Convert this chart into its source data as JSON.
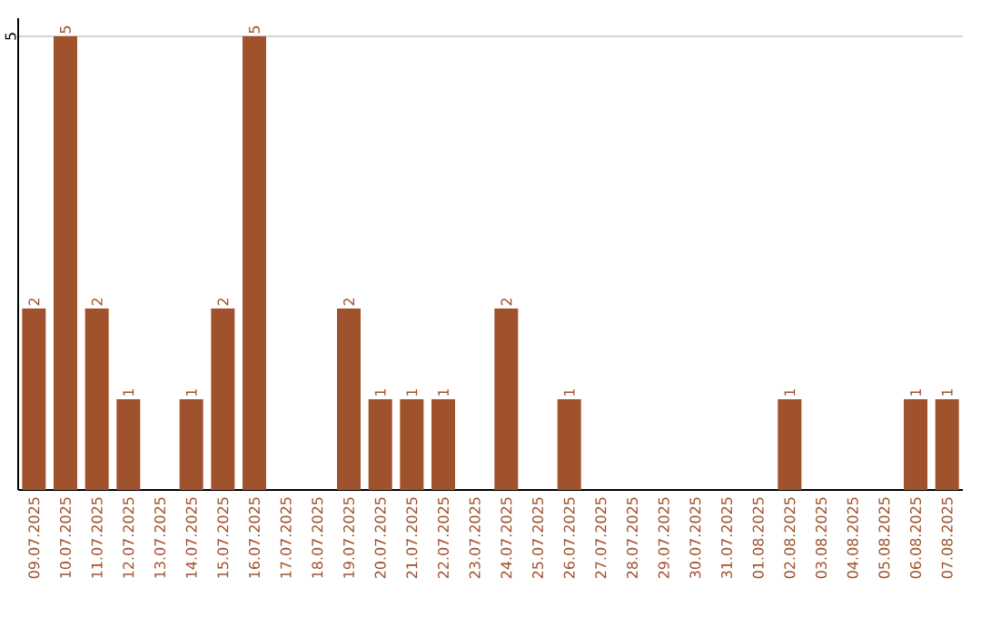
{
  "chart_data": {
    "type": "bar",
    "categories": [
      "09.07.2025",
      "10.07.2025",
      "11.07.2025",
      "12.07.2025",
      "13.07.2025",
      "14.07.2025",
      "15.07.2025",
      "16.07.2025",
      "17.07.2025",
      "18.07.2025",
      "19.07.2025",
      "20.07.2025",
      "21.07.2025",
      "22.07.2025",
      "23.07.2025",
      "24.07.2025",
      "25.07.2025",
      "26.07.2025",
      "27.07.2025",
      "28.07.2025",
      "29.07.2025",
      "30.07.2025",
      "31.07.2025",
      "01.08.2025",
      "02.08.2025",
      "03.08.2025",
      "04.08.2025",
      "05.08.2025",
      "06.08.2025",
      "07.08.2025"
    ],
    "values": [
      2,
      5,
      2,
      1,
      0,
      1,
      2,
      5,
      0,
      0,
      2,
      1,
      1,
      1,
      0,
      2,
      0,
      1,
      0,
      0,
      0,
      0,
      0,
      0,
      1,
      0,
      0,
      0,
      1,
      1
    ],
    "value_labels": [
      "2",
      "5",
      "2",
      "1",
      null,
      "1",
      "2",
      "5",
      null,
      null,
      "2",
      "1",
      "1",
      "1",
      null,
      "2",
      null,
      "1",
      null,
      null,
      null,
      null,
      null,
      null,
      "1",
      null,
      null,
      null,
      "1",
      "1"
    ],
    "color": "#a0522d",
    "ylim": [
      0,
      5.2
    ],
    "yticks": [
      5
    ],
    "grid": "y"
  }
}
